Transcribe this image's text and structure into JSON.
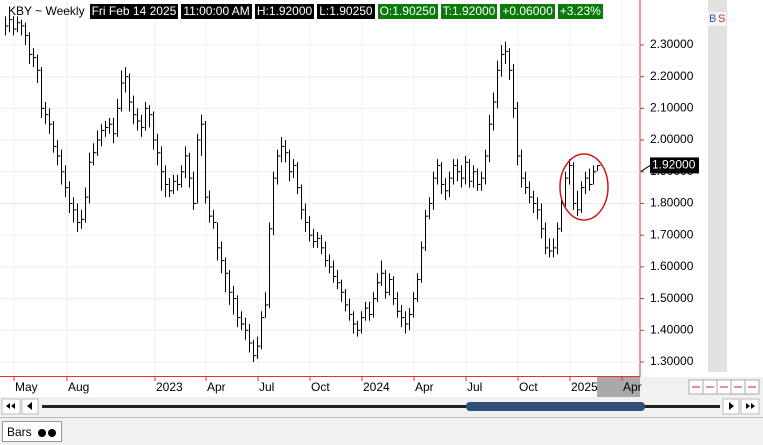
{
  "chart_data": {
    "type": "ohlc",
    "header": {
      "symbol": "KBY ~ Weekly",
      "date": "Fri Feb 14 2025",
      "time": "11:00:00 AM",
      "high": "H:1.92000",
      "low": "L:1.90250",
      "open": "O:1.90250",
      "close": "T:1.92000",
      "change": "+0.06000",
      "change_pct": "+3.23%"
    },
    "buttons": [
      "B",
      "S"
    ],
    "tab": "Bars",
    "last_price_label": "1.92000",
    "color": "#000000",
    "grid": true,
    "high": [
      2.39,
      2.4,
      2.39,
      2.39,
      2.38,
      2.37,
      2.34,
      2.29,
      2.27,
      2.23,
      2.12,
      2.1,
      2.06,
      2.0,
      1.97,
      1.92,
      1.87,
      1.82,
      1.8,
      1.78,
      1.85,
      1.96,
      1.99,
      2.03,
      2.05,
      2.06,
      2.07,
      2.07,
      2.13,
      2.22,
      2.23,
      2.21,
      2.14,
      2.1,
      2.08,
      2.12,
      2.11,
      2.09,
      2.02,
      1.98,
      1.92,
      1.88,
      1.89,
      1.89,
      1.92,
      1.98,
      1.96,
      1.9,
      2.02,
      2.08,
      2.06,
      1.84,
      1.78,
      1.74,
      1.68,
      1.63,
      1.59,
      1.54,
      1.51,
      1.46,
      1.44,
      1.42,
      1.37,
      1.38,
      1.46,
      1.52,
      1.74,
      1.9,
      1.97,
      2.01,
      2.0,
      1.97,
      1.94,
      1.93,
      1.86,
      1.8,
      1.76,
      1.72,
      1.71,
      1.7,
      1.68,
      1.64,
      1.62,
      1.59,
      1.56,
      1.53,
      1.5,
      1.46,
      1.43,
      1.46,
      1.49,
      1.49,
      1.52,
      1.58,
      1.62,
      1.59,
      1.58,
      1.57,
      1.52,
      1.48,
      1.46,
      1.47,
      1.52,
      1.58,
      1.68,
      1.78,
      1.82,
      1.9,
      1.94,
      1.93,
      1.88,
      1.9,
      1.94,
      1.94,
      1.92,
      1.95,
      1.94,
      1.92,
      1.91,
      1.9,
      1.97,
      2.08,
      2.15,
      2.25,
      2.3,
      2.31,
      2.29,
      2.24,
      2.12,
      1.97,
      1.9,
      1.87,
      1.84,
      1.82,
      1.8,
      1.74,
      1.69,
      1.69,
      1.74,
      1.82,
      1.9,
      1.94,
      1.93,
      1.84,
      1.87,
      1.9,
      1.91,
      1.92,
      1.92
    ],
    "low": [
      2.33,
      2.34,
      2.33,
      2.34,
      2.33,
      2.3,
      2.24,
      2.23,
      2.18,
      2.07,
      2.05,
      2.02,
      1.96,
      1.92,
      1.86,
      1.82,
      1.77,
      1.74,
      1.71,
      1.72,
      1.74,
      1.8,
      1.92,
      1.95,
      1.98,
      2.01,
      2.02,
      1.99,
      2.01,
      2.09,
      2.15,
      2.09,
      2.05,
      2.03,
      2.01,
      2.03,
      2.04,
      1.97,
      1.92,
      1.84,
      1.82,
      1.82,
      1.83,
      1.84,
      1.85,
      1.88,
      1.85,
      1.78,
      1.8,
      1.95,
      1.8,
      1.74,
      1.72,
      1.62,
      1.58,
      1.52,
      1.48,
      1.45,
      1.41,
      1.4,
      1.37,
      1.33,
      1.3,
      1.31,
      1.34,
      1.44,
      1.47,
      1.7,
      1.86,
      1.93,
      1.93,
      1.87,
      1.88,
      1.83,
      1.75,
      1.71,
      1.68,
      1.66,
      1.66,
      1.64,
      1.6,
      1.58,
      1.55,
      1.53,
      1.49,
      1.46,
      1.43,
      1.39,
      1.38,
      1.39,
      1.43,
      1.43,
      1.44,
      1.49,
      1.54,
      1.5,
      1.51,
      1.48,
      1.44,
      1.41,
      1.39,
      1.4,
      1.44,
      1.49,
      1.55,
      1.65,
      1.75,
      1.78,
      1.86,
      1.83,
      1.81,
      1.82,
      1.86,
      1.87,
      1.85,
      1.86,
      1.85,
      1.85,
      1.84,
      1.84,
      1.86,
      1.93,
      2.03,
      2.1,
      2.2,
      2.24,
      2.19,
      2.07,
      1.92,
      1.85,
      1.83,
      1.8,
      1.77,
      1.75,
      1.69,
      1.64,
      1.63,
      1.63,
      1.64,
      1.71,
      1.79,
      1.86,
      1.78,
      1.76,
      1.77,
      1.83,
      1.84,
      1.86,
      1.9025
    ],
    "close": [
      2.36,
      2.38,
      2.35,
      2.37,
      2.36,
      2.33,
      2.27,
      2.26,
      2.22,
      2.1,
      2.08,
      2.05,
      1.98,
      1.95,
      1.9,
      1.85,
      1.8,
      1.78,
      1.74,
      1.75,
      1.82,
      1.93,
      1.96,
      2.0,
      2.03,
      2.04,
      2.05,
      2.02,
      2.1,
      2.18,
      2.2,
      2.12,
      2.08,
      2.06,
      2.04,
      2.1,
      2.08,
      2.0,
      1.96,
      1.9,
      1.86,
      1.84,
      1.87,
      1.86,
      1.9,
      1.95,
      1.88,
      1.8,
      2.0,
      2.05,
      1.82,
      1.76,
      1.74,
      1.66,
      1.62,
      1.58,
      1.52,
      1.5,
      1.44,
      1.42,
      1.4,
      1.36,
      1.32,
      1.35,
      1.44,
      1.48,
      1.72,
      1.88,
      1.95,
      1.98,
      1.96,
      1.9,
      1.92,
      1.85,
      1.78,
      1.74,
      1.7,
      1.68,
      1.69,
      1.66,
      1.62,
      1.6,
      1.57,
      1.55,
      1.52,
      1.48,
      1.45,
      1.42,
      1.4,
      1.44,
      1.47,
      1.45,
      1.5,
      1.55,
      1.58,
      1.52,
      1.56,
      1.5,
      1.46,
      1.44,
      1.42,
      1.45,
      1.5,
      1.56,
      1.66,
      1.76,
      1.8,
      1.88,
      1.92,
      1.86,
      1.84,
      1.88,
      1.92,
      1.9,
      1.88,
      1.93,
      1.87,
      1.9,
      1.86,
      1.88,
      1.95,
      2.05,
      2.12,
      2.22,
      2.27,
      2.28,
      2.22,
      2.1,
      1.95,
      1.88,
      1.85,
      1.82,
      1.8,
      1.78,
      1.72,
      1.66,
      1.65,
      1.66,
      1.72,
      1.8,
      1.88,
      1.92,
      1.8,
      1.78,
      1.85,
      1.88,
      1.86,
      1.9,
      1.92
    ],
    "xlim": [
      -1.25,
      158.75
    ],
    "xticks": [
      {
        "value": 2.25,
        "label": "May"
      },
      {
        "value": 15.5,
        "label": "Aug"
      },
      {
        "value": 37.5,
        "label": "2023"
      },
      {
        "value": 50.25,
        "label": "Apr"
      },
      {
        "value": 63.25,
        "label": "Jul"
      },
      {
        "value": 76.25,
        "label": "Oct"
      },
      {
        "value": 89.25,
        "label": "2024"
      },
      {
        "value": 102.25,
        "label": "Apr"
      },
      {
        "value": 115.25,
        "label": "Jul"
      },
      {
        "value": 128.25,
        "label": "Oct"
      },
      {
        "value": 141.25,
        "label": "2025"
      },
      {
        "value": 154.25,
        "label": "Apr"
      }
    ],
    "ylim": [
      1.259,
      2.426
    ],
    "yticks": [
      {
        "value": 1.3,
        "label": "1.30000"
      },
      {
        "value": 1.4,
        "label": "1.40000"
      },
      {
        "value": 1.5,
        "label": "1.50000"
      },
      {
        "value": 1.6,
        "label": "1.60000"
      },
      {
        "value": 1.7,
        "label": "1.70000"
      },
      {
        "value": 1.8,
        "label": "1.80000"
      },
      {
        "value": 1.9,
        "label": "1.90000"
      },
      {
        "value": 2.0,
        "label": "2.00000"
      },
      {
        "value": 2.1,
        "label": "2.10000"
      },
      {
        "value": 2.2,
        "label": "2.20000"
      },
      {
        "value": 2.3,
        "label": "2.30000"
      }
    ]
  }
}
